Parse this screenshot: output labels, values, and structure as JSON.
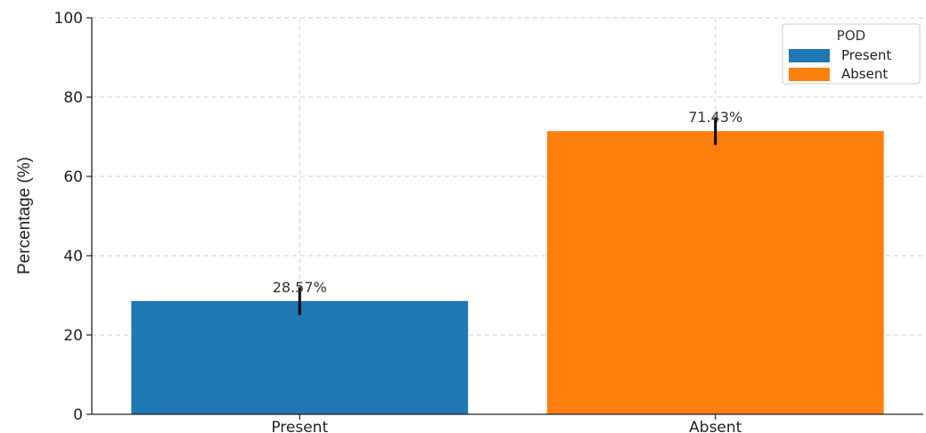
{
  "chart_data": {
    "type": "bar",
    "categories": [
      "Present",
      "Absent"
    ],
    "values": [
      28.57,
      71.43
    ],
    "errors": [
      3.5,
      3.5
    ],
    "data_labels": [
      "28.57%",
      "71.43%"
    ],
    "colors": [
      "#1f77b4",
      "#ff7f0e"
    ],
    "title": "",
    "xlabel": "",
    "ylabel": "Percentage (%)",
    "ylim": [
      0,
      100
    ],
    "yticks": [
      0,
      20,
      40,
      60,
      80,
      100
    ],
    "grid": true,
    "legend": {
      "title": "POD",
      "placement": "top-right",
      "entries": [
        "Present",
        "Absent"
      ]
    }
  }
}
